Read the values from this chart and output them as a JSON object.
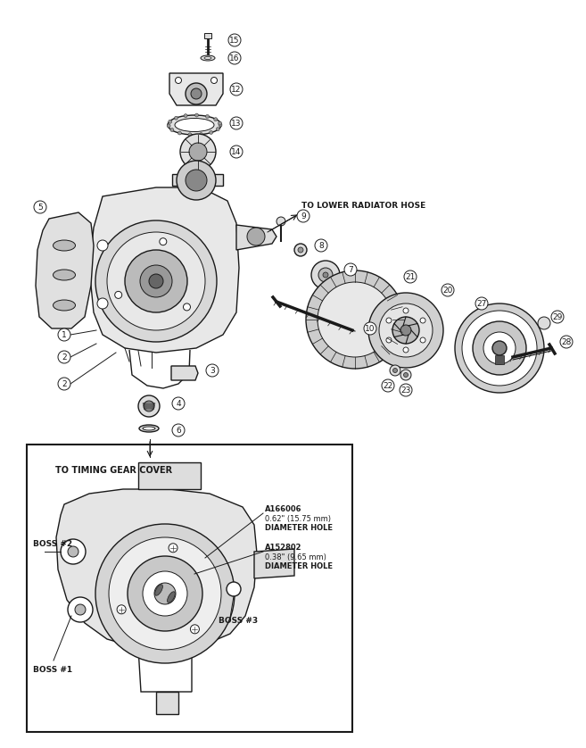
{
  "bg_color": "white",
  "line_color": "#1a1a1a",
  "lw_main": 1.0,
  "lw_thin": 0.7,
  "lw_thick": 1.5,
  "labels": {
    "to_lower_radiator": "TO LOWER RADIATOR HOSE",
    "to_timing_gear": "TO TIMING GEAR COVER",
    "boss1": "BOSS #1",
    "boss2": "BOSS #2",
    "boss3": "BOSS #3",
    "ann1_line1": "A166006",
    "ann1_line2": "0.62\" (15.75 mm)",
    "ann1_line3": "DIAMETER HOLE",
    "ann2_line1": "A152802",
    "ann2_line2": "0.38\" (9.65 mm)",
    "ann2_line3": "DIAMETER HOLE"
  }
}
